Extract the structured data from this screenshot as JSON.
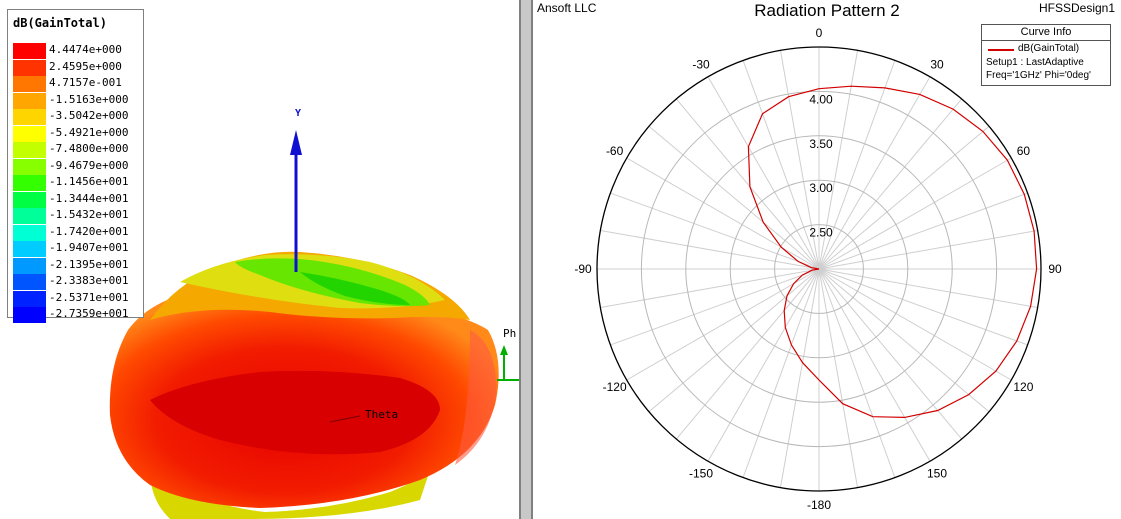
{
  "left_view": {
    "legend_title": "dB(GainTotal)",
    "legend": [
      {
        "value": "4.4474e+000",
        "color": "#ff0000"
      },
      {
        "value": "2.4595e+000",
        "color": "#ff3300"
      },
      {
        "value": "4.7157e-001",
        "color": "#ff7700"
      },
      {
        "value": "-1.5163e+000",
        "color": "#ffa600"
      },
      {
        "value": "-3.5042e+000",
        "color": "#ffd500"
      },
      {
        "value": "-5.4921e+000",
        "color": "#ffff00"
      },
      {
        "value": "-7.4800e+000",
        "color": "#c4ff00"
      },
      {
        "value": "-9.4679e+000",
        "color": "#88ff00"
      },
      {
        "value": "-1.1456e+001",
        "color": "#33ff00"
      },
      {
        "value": "-1.3444e+001",
        "color": "#00ff44"
      },
      {
        "value": "-1.5432e+001",
        "color": "#00ff99"
      },
      {
        "value": "-1.7420e+001",
        "color": "#00ffd5"
      },
      {
        "value": "-1.9407e+001",
        "color": "#00ccff"
      },
      {
        "value": "-2.1395e+001",
        "color": "#0099ff"
      },
      {
        "value": "-2.3383e+001",
        "color": "#0055ff"
      },
      {
        "value": "-2.5371e+001",
        "color": "#0022ff"
      },
      {
        "value": "-2.7359e+001",
        "color": "#0000ff"
      }
    ],
    "axis_y_label": "Y",
    "phi_label": "Ph",
    "theta_label": "Theta",
    "colors": {
      "axis_y": "#1010d0",
      "axis_phi": "#00b000"
    }
  },
  "right_view": {
    "company": "Ansoft LLC",
    "design": "HFSSDesign1",
    "title": "Radiation Pattern 2",
    "curve_info": {
      "header": "Curve Info",
      "name": "dB(GainTotal)",
      "setup": "Setup1 : LastAdaptive",
      "freq": "Freq='1GHz' Phi='0deg'",
      "line_color": "#d20000"
    }
  },
  "chart_data": {
    "type": "polar",
    "title": "Radiation Pattern 2",
    "angle_ticks": [
      "0",
      "30",
      "60",
      "90",
      "120",
      "150",
      "-180",
      "-150",
      "-120",
      "-90",
      "-60",
      "-30"
    ],
    "radial_ticks": [
      "2.50",
      "3.00",
      "3.50",
      "4.00"
    ],
    "radial_range": [
      2.0,
      4.5
    ],
    "grid": true,
    "legend": "top-right",
    "series": [
      {
        "name": "dB(GainTotal)",
        "color": "#d20000",
        "theta_deg": [
          -180,
          -170,
          -160,
          -150,
          -140,
          -130,
          -120,
          -110,
          -100,
          -90,
          -80,
          -70,
          -60,
          -50,
          -40,
          -30,
          -20,
          -10,
          0,
          10,
          20,
          30,
          40,
          50,
          60,
          70,
          80,
          90,
          100,
          110,
          120,
          130,
          140,
          150,
          160,
          170,
          180
        ],
        "values": [
          3.25,
          3.07,
          2.91,
          2.76,
          2.61,
          2.47,
          2.33,
          2.2,
          2.08,
          2.0,
          2.09,
          2.25,
          2.49,
          2.82,
          3.21,
          3.59,
          3.86,
          3.97,
          4.03,
          4.09,
          4.17,
          4.27,
          4.35,
          4.41,
          4.45,
          4.46,
          4.46,
          4.45,
          4.42,
          4.37,
          4.3,
          4.2,
          4.08,
          3.93,
          3.77,
          3.54,
          3.25
        ]
      }
    ]
  }
}
